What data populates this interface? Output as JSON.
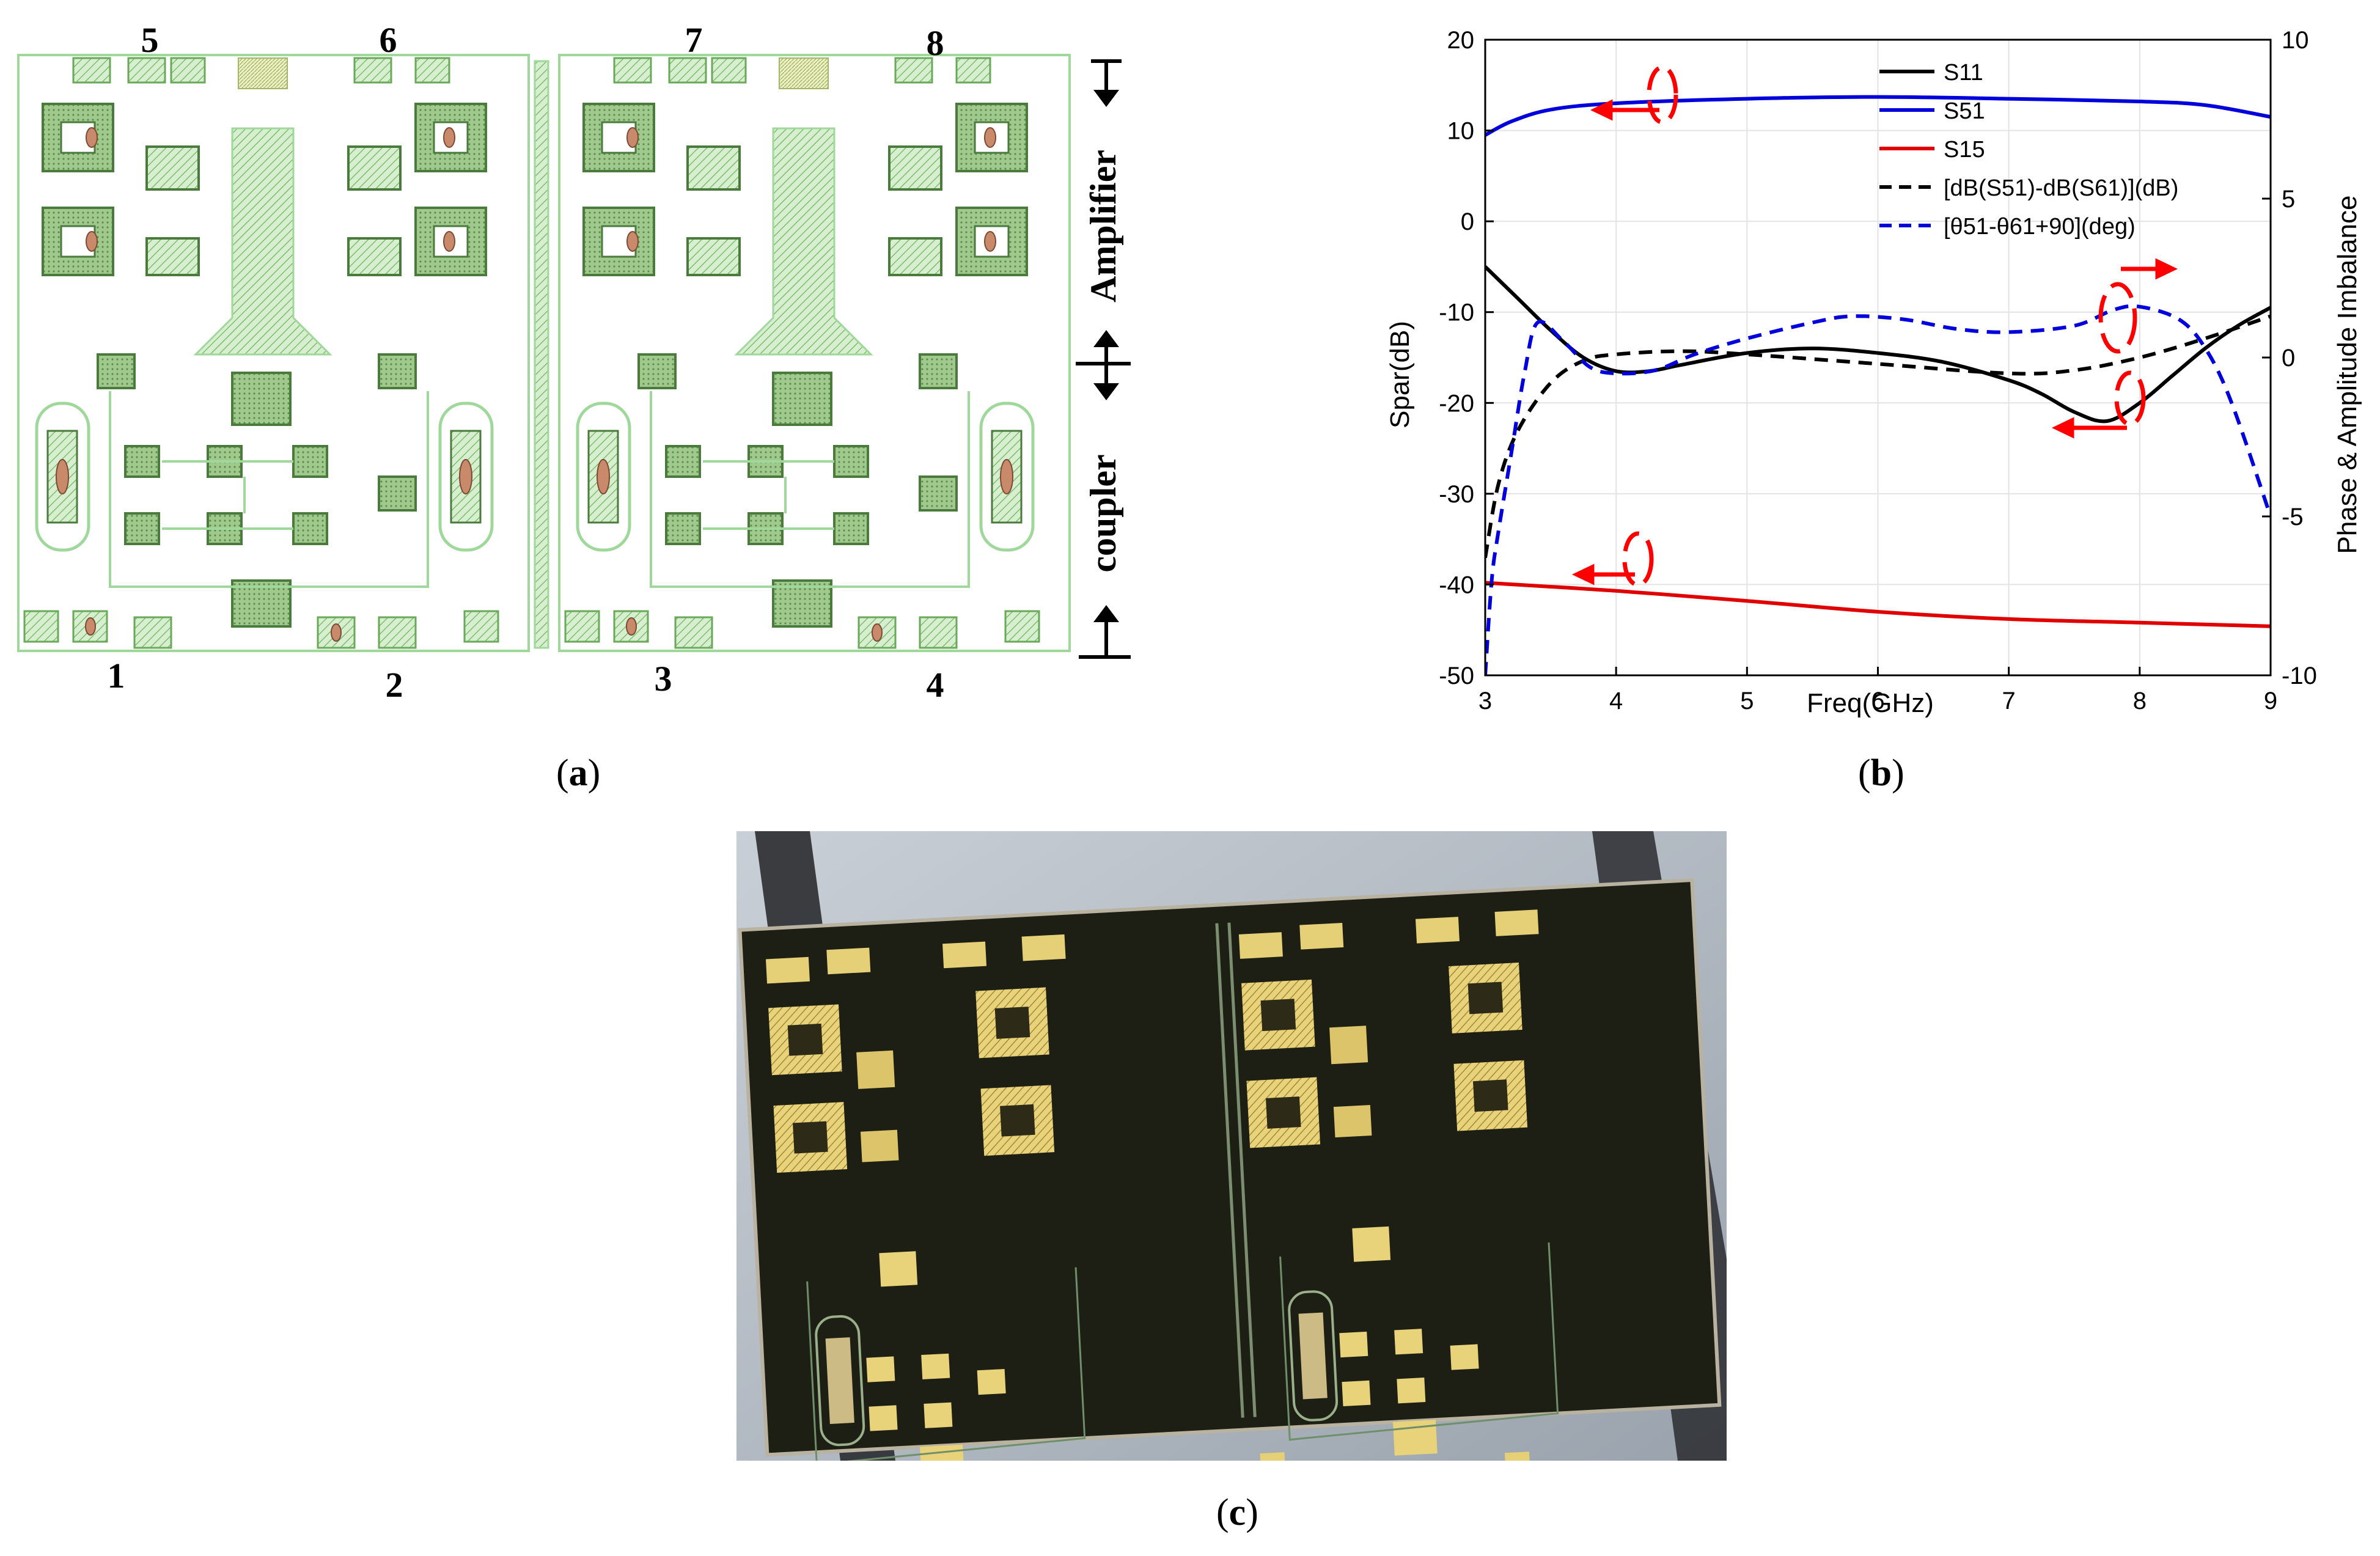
{
  "panel_a": {
    "port_labels_top": [
      "5",
      "6",
      "7",
      "8"
    ],
    "port_labels_bottom": [
      "1",
      "2",
      "3",
      "4"
    ],
    "section_amplifier": "Amplifier",
    "section_coupler": "coupler",
    "caption_open": "(",
    "caption_letter": "a",
    "caption_close": ")"
  },
  "panel_b": {
    "caption_open": "(",
    "caption_letter": "b",
    "caption_close": ")",
    "colors": {
      "s11": "#000000",
      "s51": "#0000dd",
      "s15": "#e00000",
      "arrow": "#ff0000"
    }
  },
  "panel_c": {
    "caption_open": "(",
    "caption_letter": "c",
    "caption_close": ")"
  },
  "chart_data": {
    "type": "line",
    "xlabel": "Freq(GHz)",
    "ylabel": "Spar(dB)",
    "y2label": "Phase & Amplitude Imbalance",
    "xlim": [
      3,
      9
    ],
    "ylim": [
      -50,
      20
    ],
    "y2lim": [
      -10,
      10
    ],
    "xticks": [
      "3",
      "4",
      "5",
      "6",
      "7",
      "8",
      "9"
    ],
    "yticks": [
      "20",
      "10",
      "0",
      "-10",
      "-20",
      "-30",
      "-40",
      "-50"
    ],
    "y2ticks": [
      "10",
      "5",
      "0",
      "-5",
      "-10"
    ],
    "grid": true,
    "legend_position": "top-right",
    "series": [
      {
        "name": "S11",
        "axis": "left",
        "style": "solid",
        "color": "#000000",
        "x": [
          3.0,
          3.25,
          3.5,
          3.75,
          4.0,
          4.25,
          4.5,
          5.0,
          5.5,
          6.0,
          6.5,
          7.0,
          7.25,
          7.5,
          7.75,
          8.0,
          8.25,
          8.5,
          8.75,
          9.0
        ],
        "y": [
          -5,
          -8.5,
          -12,
          -15,
          -16.5,
          -16.5,
          -15.8,
          -14.5,
          -14,
          -14.5,
          -15.5,
          -17.5,
          -19,
          -21,
          -22,
          -20,
          -17,
          -14,
          -11.5,
          -9.5
        ]
      },
      {
        "name": "S51",
        "axis": "left",
        "style": "solid",
        "color": "#0000dd",
        "x": [
          3.0,
          3.2,
          3.5,
          4.0,
          5.0,
          6.0,
          7.0,
          8.0,
          8.5,
          9.0
        ],
        "y": [
          9.5,
          11,
          12.3,
          13,
          13.5,
          13.7,
          13.5,
          13.2,
          12.8,
          11.5
        ]
      },
      {
        "name": "S15",
        "axis": "left",
        "style": "solid",
        "color": "#e00000",
        "x": [
          3.0,
          4.0,
          5.0,
          6.0,
          7.0,
          8.0,
          9.0
        ],
        "y": [
          -39.8,
          -40.7,
          -41.8,
          -43,
          -43.8,
          -44.2,
          -44.6
        ]
      },
      {
        "name": "[dB(S51)-dB(S61)](dB)",
        "axis": "right",
        "style": "dashed",
        "color": "#000000",
        "x": [
          3.0,
          3.1,
          3.25,
          3.5,
          3.75,
          4.0,
          4.5,
          5.0,
          6.0,
          7.0,
          7.5,
          8.0,
          8.5,
          9.0
        ],
        "y": [
          -6.3,
          -4,
          -2.3,
          -0.8,
          -0.1,
          0.1,
          0.2,
          0.1,
          -0.2,
          -0.5,
          -0.4,
          0,
          0.6,
          1.3
        ]
      },
      {
        "name": "[θ51-θ61+90](deg)",
        "axis": "right",
        "style": "dashed",
        "color": "#0000dd",
        "x": [
          3.0,
          3.05,
          3.1,
          3.2,
          3.3,
          3.4,
          3.6,
          3.8,
          4.0,
          4.3,
          4.6,
          5.0,
          5.5,
          5.8,
          6.2,
          6.6,
          7.0,
          7.5,
          7.8,
          8.0,
          8.3,
          8.5,
          8.7,
          9.0
        ],
        "y": [
          -10,
          -7,
          -5.5,
          -3,
          -0.5,
          1.1,
          0.5,
          -0.3,
          -0.5,
          -0.4,
          0.1,
          0.6,
          1.1,
          1.3,
          1.2,
          0.9,
          0.8,
          1.0,
          1.5,
          1.6,
          1.2,
          0.3,
          -1.4,
          -5.0
        ]
      }
    ]
  }
}
